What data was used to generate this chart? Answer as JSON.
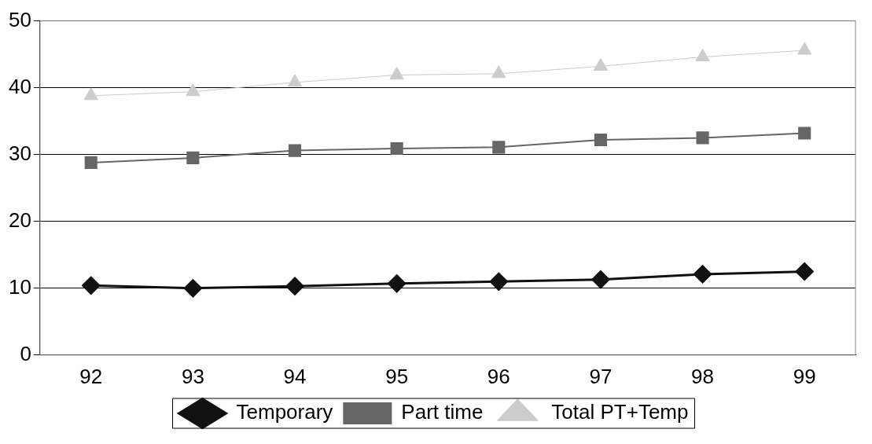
{
  "chart_data": {
    "type": "line",
    "categories": [
      "92",
      "93",
      "94",
      "95",
      "96",
      "97",
      "98",
      "99"
    ],
    "series": [
      {
        "name": "Temporary",
        "color": "#111111",
        "marker": "diamond",
        "values": [
          10.4,
          10,
          10.3,
          10.7,
          11,
          11.3,
          12.1,
          12.5
        ]
      },
      {
        "name": "Part time",
        "color": "#666666",
        "marker": "square",
        "values": [
          28.8,
          29.5,
          30.6,
          30.9,
          31.1,
          32.2,
          32.5,
          33.2
        ]
      },
      {
        "name": "Total PT+Temp",
        "color": "#cccccc",
        "marker": "triangle",
        "values": [
          38.8,
          39.4,
          40.8,
          41.9,
          42.1,
          43.2,
          44.6,
          45.6
        ]
      }
    ],
    "ylim": [
      0,
      50
    ],
    "yticks": [
      0,
      10,
      20,
      30,
      40,
      50
    ],
    "grid": "y",
    "legend": "bottom",
    "line_style": "solid"
  }
}
